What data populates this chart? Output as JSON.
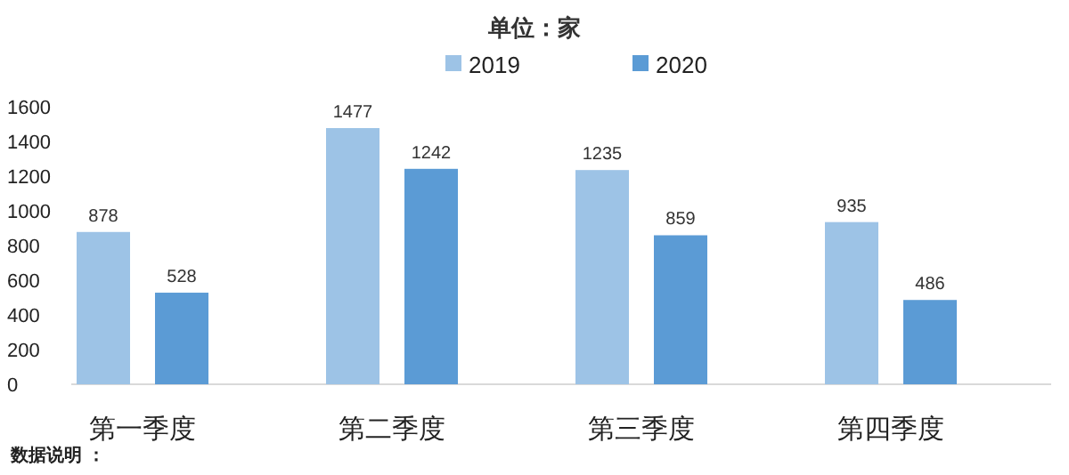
{
  "chart_data": {
    "type": "bar",
    "title": "单位：家",
    "categories": [
      "第一季度",
      "第二季度",
      "第三季度",
      "第四季度"
    ],
    "series": [
      {
        "name": "2019",
        "color": "#9dc3e6",
        "values": [
          878,
          1477,
          1235,
          935
        ]
      },
      {
        "name": "2020",
        "color": "#5b9bd5",
        "values": [
          528,
          1242,
          859,
          486
        ]
      }
    ],
    "ylim": [
      0,
      1600
    ],
    "yticks": [
      0,
      200,
      400,
      600,
      800,
      1000,
      1200,
      1400,
      1600
    ],
    "grid": false,
    "legend": "top",
    "data_labels": true,
    "annotations": [
      "数据说明 ："
    ]
  }
}
